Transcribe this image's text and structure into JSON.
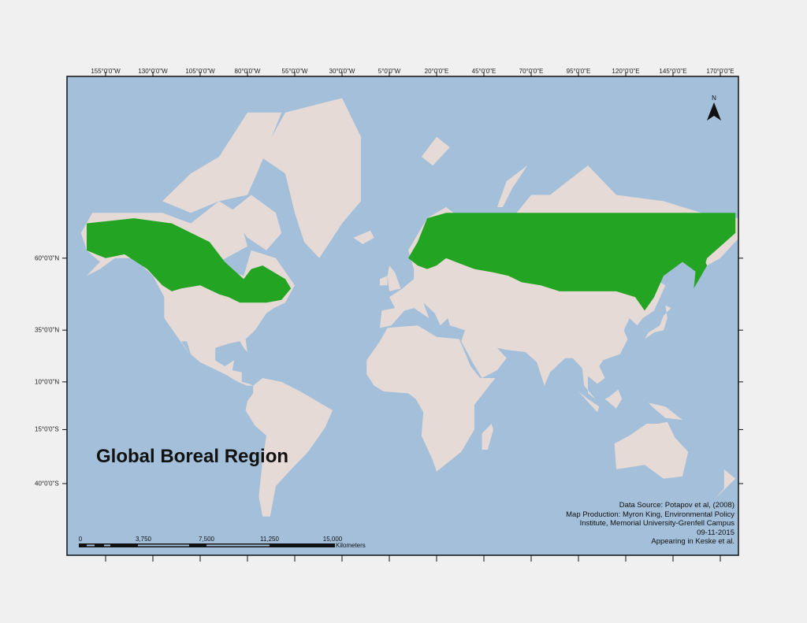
{
  "title": "Global Boreal Region",
  "longitude_labels": [
    "155°0'0\"W",
    "130°0'0\"W",
    "105°0'0\"W",
    "80°0'0\"W",
    "55°0'0\"W",
    "30°0'0\"W",
    "5°0'0\"W",
    "20°0'0\"E",
    "45°0'0\"E",
    "70°0'0\"E",
    "95°0'0\"E",
    "120°0'0\"E",
    "145°0'0\"E",
    "170°0'0\"E"
  ],
  "latitude_labels": [
    "60°0'0\"N",
    "35°0'0\"N",
    "10°0'0\"N",
    "15°0'0\"S",
    "40°0'0\"S"
  ],
  "credits": [
    "Data Source: Potapov et al, (2008)",
    "Map Production: Myron King, Environmental Policy",
    "Institute, Memorial University-Grenfell Campus",
    "09-11-2015",
    "Appearing in Keske et al."
  ],
  "scale_bar": {
    "labels": [
      "0",
      "3,750",
      "7,500",
      "11,250",
      "15,000"
    ],
    "unit": "Kilometers"
  },
  "north_arrow": {
    "label": "N"
  },
  "colors": {
    "ocean": "#a3bfda",
    "land": "#e6dad6",
    "boreal": "#23a523",
    "background": "#f0f0f0"
  }
}
